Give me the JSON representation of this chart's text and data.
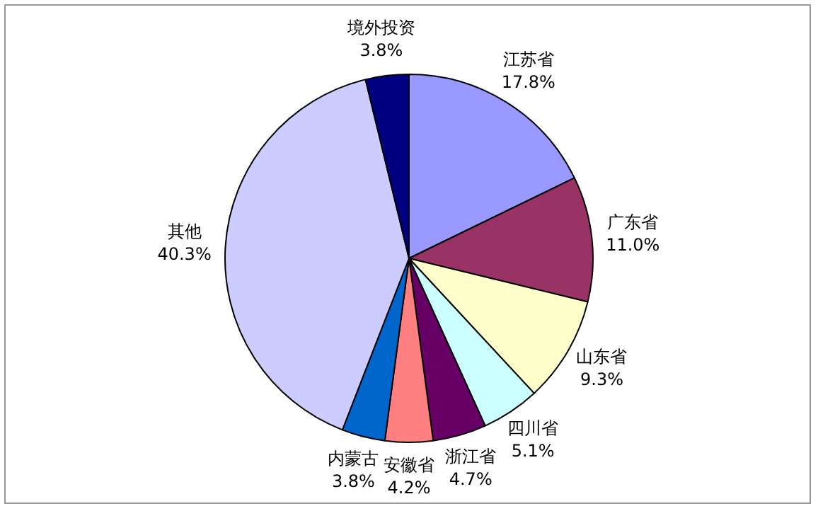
{
  "chart_data": {
    "type": "pie",
    "categories": [
      "江苏省",
      "广东省",
      "山东省",
      "四川省",
      "浙江省",
      "安徽省",
      "内蒙古",
      "其他",
      "境外投资"
    ],
    "values": [
      17.8,
      11.0,
      9.3,
      5.1,
      4.7,
      4.2,
      3.8,
      40.3,
      3.8
    ],
    "value_labels": [
      "17.8%",
      "11.0%",
      "9.3%",
      "5.1%",
      "4.7%",
      "4.2%",
      "3.8%",
      "40.3%",
      "3.8%"
    ],
    "colors": [
      "#9999ff",
      "#993366",
      "#ffffcc",
      "#ccffff",
      "#660066",
      "#ff8080",
      "#0066cc",
      "#ccccff",
      "#000080"
    ],
    "legend": false
  }
}
